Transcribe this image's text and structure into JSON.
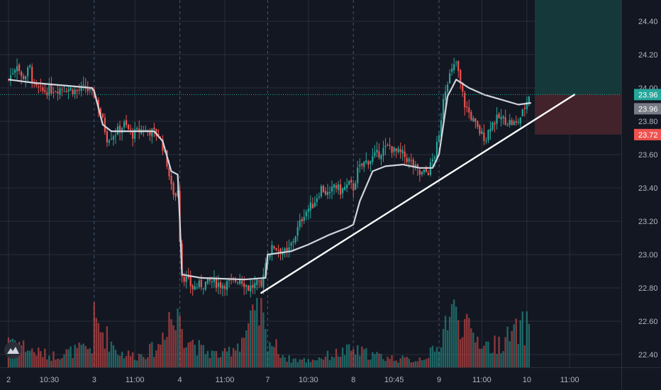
{
  "chart_data": {
    "type": "candlestick",
    "y_axis": {
      "range": [
        22.3,
        24.53
      ],
      "ticks": [
        22.4,
        22.6,
        22.8,
        23.0,
        23.2,
        23.4,
        23.6,
        23.8,
        24.0,
        24.2,
        24.4
      ],
      "tick_labels": [
        "22.40",
        "22.60",
        "22.80",
        "23.00",
        "23.20",
        "23.40",
        "23.60",
        "23.80",
        "24.00",
        "24.20",
        "24.40"
      ]
    },
    "x_axis": {
      "tick_labels": [
        {
          "label": "2",
          "bar": 0,
          "session_break": false
        },
        {
          "label": "10:30",
          "bar": 19,
          "session_break": false
        },
        {
          "label": "3",
          "bar": 40,
          "session_break": true
        },
        {
          "label": "11:00",
          "bar": 59,
          "session_break": false
        },
        {
          "label": "4",
          "bar": 80,
          "session_break": true
        },
        {
          "label": "11:00",
          "bar": 101,
          "session_break": false
        },
        {
          "label": "7",
          "bar": 121,
          "session_break": true
        },
        {
          "label": "10:30",
          "bar": 140,
          "session_break": false
        },
        {
          "label": "8",
          "bar": 161,
          "session_break": true
        },
        {
          "label": "10:45",
          "bar": 180,
          "session_break": false
        },
        {
          "label": "9",
          "bar": 201,
          "session_break": true
        },
        {
          "label": "11:00",
          "bar": 221,
          "session_break": false
        },
        {
          "label": "10",
          "bar": 242,
          "session_break": false
        },
        {
          "label": "11:00",
          "bar": 262,
          "session_break": false
        }
      ]
    },
    "price_badges": [
      {
        "label": "23.96",
        "value": 23.96,
        "color": "#26a69a"
      },
      {
        "label": "23.96",
        "value": 23.96,
        "color": "#787b86"
      },
      {
        "label": "23.72",
        "value": 23.72,
        "color": "#ef5350"
      }
    ],
    "current_price": 23.96,
    "position": {
      "entry": 23.96,
      "target": 24.53,
      "stop": 23.72
    },
    "trendline": {
      "start": {
        "bar": 118,
        "price": 22.77
      },
      "end": {
        "bar": 253,
        "price": 23.96
      }
    },
    "colors": {
      "background": "#131722",
      "grid": "#2a2e39",
      "up": "#26a69a",
      "down": "#ef5350",
      "vwap": "#d1d4dc",
      "trendline": "#ffffff",
      "profit_zone": "#15393a",
      "loss_zone": "#42232b",
      "price_line": "#26a69a"
    },
    "price_anchors": [
      [
        0,
        24.05
      ],
      [
        2,
        24.1
      ],
      [
        4,
        24.15
      ],
      [
        6,
        24.06
      ],
      [
        8,
        24.08
      ],
      [
        10,
        24.12
      ],
      [
        12,
        24.0
      ],
      [
        16,
        23.98
      ],
      [
        20,
        23.99
      ],
      [
        26,
        24.0
      ],
      [
        32,
        23.98
      ],
      [
        36,
        24.0
      ],
      [
        39,
        23.96
      ],
      [
        40,
        23.96
      ],
      [
        43,
        23.85
      ],
      [
        46,
        23.7
      ],
      [
        50,
        23.73
      ],
      [
        54,
        23.78
      ],
      [
        58,
        23.72
      ],
      [
        62,
        23.75
      ],
      [
        66,
        23.74
      ],
      [
        70,
        23.72
      ],
      [
        72,
        23.65
      ],
      [
        74,
        23.55
      ],
      [
        76,
        23.4
      ],
      [
        78,
        23.35
      ],
      [
        79,
        23.4
      ],
      [
        80,
        23.1
      ],
      [
        81,
        22.88
      ],
      [
        83,
        22.85
      ],
      [
        86,
        22.8
      ],
      [
        90,
        22.82
      ],
      [
        95,
        22.84
      ],
      [
        99,
        22.82
      ],
      [
        104,
        22.83
      ],
      [
        108,
        22.86
      ],
      [
        112,
        22.8
      ],
      [
        116,
        22.82
      ],
      [
        118,
        22.8
      ],
      [
        119,
        22.9
      ],
      [
        121,
        23.0
      ],
      [
        124,
        23.05
      ],
      [
        128,
        23.02
      ],
      [
        130,
        23.0
      ],
      [
        134,
        23.12
      ],
      [
        138,
        23.25
      ],
      [
        142,
        23.3
      ],
      [
        146,
        23.4
      ],
      [
        150,
        23.35
      ],
      [
        152,
        23.42
      ],
      [
        155,
        23.38
      ],
      [
        159,
        23.42
      ],
      [
        161,
        23.4
      ],
      [
        163,
        23.5
      ],
      [
        166,
        23.55
      ],
      [
        170,
        23.58
      ],
      [
        174,
        23.62
      ],
      [
        178,
        23.65
      ],
      [
        180,
        23.62
      ],
      [
        184,
        23.6
      ],
      [
        188,
        23.55
      ],
      [
        192,
        23.48
      ],
      [
        196,
        23.5
      ],
      [
        199,
        23.6
      ],
      [
        201,
        23.7
      ],
      [
        203,
        23.95
      ],
      [
        205,
        24.05
      ],
      [
        207,
        24.1
      ],
      [
        209,
        24.15
      ],
      [
        211,
        24.02
      ],
      [
        213,
        23.9
      ],
      [
        215,
        23.85
      ],
      [
        217,
        23.8
      ],
      [
        219,
        23.75
      ],
      [
        221,
        23.72
      ],
      [
        223,
        23.7
      ],
      [
        225,
        23.78
      ],
      [
        229,
        23.82
      ],
      [
        233,
        23.8
      ],
      [
        237,
        23.78
      ],
      [
        240,
        23.85
      ],
      [
        242,
        23.92
      ],
      [
        243,
        23.96
      ]
    ],
    "vwap": [
      [
        0,
        24.05
      ],
      [
        12,
        24.03
      ],
      [
        30,
        24.01
      ],
      [
        39,
        24.0
      ],
      [
        40,
        23.98
      ],
      [
        44,
        23.78
      ],
      [
        48,
        23.74
      ],
      [
        58,
        23.74
      ],
      [
        68,
        23.74
      ],
      [
        72,
        23.68
      ],
      [
        76,
        23.5
      ],
      [
        79,
        23.48
      ],
      [
        80,
        23.2
      ],
      [
        81,
        22.88
      ],
      [
        90,
        22.86
      ],
      [
        110,
        22.85
      ],
      [
        120,
        22.86
      ],
      [
        121,
        23.0
      ],
      [
        132,
        23.02
      ],
      [
        140,
        23.06
      ],
      [
        150,
        23.12
      ],
      [
        158,
        23.16
      ],
      [
        161,
        23.18
      ],
      [
        164,
        23.32
      ],
      [
        170,
        23.5
      ],
      [
        176,
        23.53
      ],
      [
        184,
        23.54
      ],
      [
        192,
        23.52
      ],
      [
        198,
        23.52
      ],
      [
        201,
        23.6
      ],
      [
        205,
        23.95
      ],
      [
        209,
        24.05
      ],
      [
        215,
        24.0
      ],
      [
        222,
        23.96
      ],
      [
        230,
        23.93
      ],
      [
        238,
        23.9
      ],
      [
        244,
        23.91
      ]
    ],
    "volume_hints": [
      [
        0,
        0.55
      ],
      [
        10,
        0.3
      ],
      [
        20,
        0.2
      ],
      [
        39,
        0.35
      ],
      [
        40,
        0.8
      ],
      [
        52,
        0.25
      ],
      [
        60,
        0.2
      ],
      [
        70,
        0.35
      ],
      [
        75,
        0.95
      ],
      [
        78,
        0.7
      ],
      [
        80,
        1.0
      ],
      [
        82,
        0.6
      ],
      [
        90,
        0.3
      ],
      [
        100,
        0.2
      ],
      [
        108,
        0.45
      ],
      [
        114,
        0.8
      ],
      [
        118,
        0.95
      ],
      [
        120,
        0.55
      ],
      [
        130,
        0.15
      ],
      [
        140,
        0.12
      ],
      [
        160,
        0.3
      ],
      [
        175,
        0.18
      ],
      [
        190,
        0.12
      ],
      [
        200,
        0.3
      ],
      [
        205,
        0.9
      ],
      [
        210,
        0.95
      ],
      [
        215,
        0.6
      ],
      [
        225,
        0.35
      ],
      [
        235,
        0.55
      ],
      [
        243,
        0.75
      ]
    ]
  }
}
